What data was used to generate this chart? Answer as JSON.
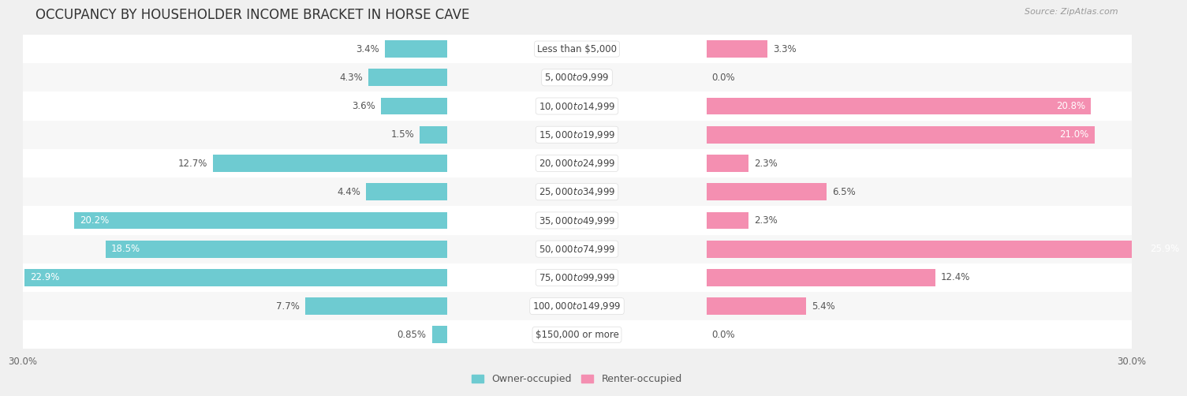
{
  "title": "OCCUPANCY BY HOUSEHOLDER INCOME BRACKET IN HORSE CAVE",
  "source": "Source: ZipAtlas.com",
  "categories": [
    "Less than $5,000",
    "$5,000 to $9,999",
    "$10,000 to $14,999",
    "$15,000 to $19,999",
    "$20,000 to $24,999",
    "$25,000 to $34,999",
    "$35,000 to $49,999",
    "$50,000 to $74,999",
    "$75,000 to $99,999",
    "$100,000 to $149,999",
    "$150,000 or more"
  ],
  "owner_values": [
    3.4,
    4.3,
    3.6,
    1.5,
    12.7,
    4.4,
    20.2,
    18.5,
    22.9,
    7.7,
    0.85
  ],
  "renter_values": [
    3.3,
    0.0,
    20.8,
    21.0,
    2.3,
    6.5,
    2.3,
    25.9,
    12.4,
    5.4,
    0.0
  ],
  "owner_color": "#6ecbd1",
  "renter_color": "#f48fb1",
  "bg_color": "#f0f0f0",
  "row_bg_even": "#ffffff",
  "row_bg_odd": "#f7f7f7",
  "axis_limit": 30.0,
  "bar_height": 0.6,
  "title_fontsize": 12,
  "label_fontsize": 8.5,
  "value_fontsize": 8.5,
  "tick_fontsize": 8.5,
  "legend_fontsize": 9,
  "source_fontsize": 8
}
